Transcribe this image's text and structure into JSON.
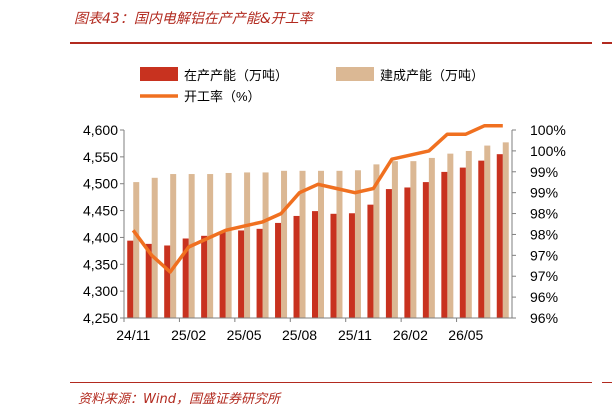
{
  "figure": {
    "title": "图表43：国内电解铝在产产能&开工率",
    "source": "资料来源：Wind，国盛证券研究所"
  },
  "colors": {
    "capacity_operating": "#c8321f",
    "capacity_built": "#dbb894",
    "rate_line": "#f07020",
    "accent_rule": "#b22a1f"
  },
  "chart_data": {
    "type": "bar",
    "categories": [
      "24/11",
      "24/12",
      "25/01",
      "25/02",
      "25/03",
      "25/04",
      "25/05",
      "25/06",
      "25/07",
      "25/08",
      "25/09",
      "25/10",
      "25/11",
      "25/12",
      "26/01",
      "26/02",
      "26/03",
      "26/04",
      "26/05",
      "26/06",
      "26/07"
    ],
    "x_tick_labels": [
      "24/11",
      "25/02",
      "25/05",
      "25/08",
      "25/11",
      "26/02",
      "26/05"
    ],
    "series": [
      {
        "name": "在产产能（万吨）",
        "type": "bar",
        "axis": "left",
        "values": [
          4394,
          4388,
          4385,
          4398,
          4403,
          4410,
          4413,
          4416,
          4427,
          4440,
          4449,
          4444,
          4445,
          4461,
          4490,
          4493,
          4503,
          4522,
          4530,
          4543,
          4555
        ]
      },
      {
        "name": "建成产能（万吨）",
        "type": "bar",
        "axis": "left",
        "values": [
          4503,
          4511,
          4518,
          4518,
          4518,
          4520,
          4521,
          4521,
          4524,
          4524,
          4524,
          4524,
          4525,
          4536,
          4542,
          4542,
          4548,
          4556,
          4561,
          4571,
          4577
        ]
      },
      {
        "name": "开工率（%）",
        "type": "line",
        "axis": "right",
        "values": [
          98.1,
          97.5,
          97.1,
          97.7,
          97.9,
          98.1,
          98.2,
          98.3,
          98.5,
          99.0,
          99.2,
          99.1,
          99.0,
          99.1,
          99.8,
          99.9,
          100.0,
          100.4,
          100.4,
          100.6,
          100.6
        ]
      }
    ],
    "y_left": {
      "min": 4250,
      "max": 4600,
      "ticks": [
        "4,250",
        "4,300",
        "4,350",
        "4,400",
        "4,450",
        "4,500",
        "4,550",
        "4,600"
      ]
    },
    "y_right": {
      "min": 96,
      "max": 100.5,
      "ticks": [
        "96%",
        "96%",
        "97%",
        "97%",
        "98%",
        "98%",
        "99%",
        "99%",
        "100%",
        "100%"
      ]
    },
    "legend_placement": "top",
    "grid": false
  }
}
